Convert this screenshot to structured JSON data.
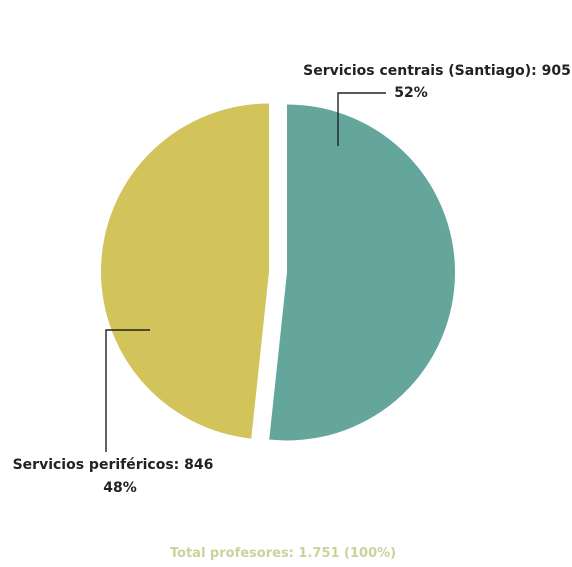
{
  "chart_data": {
    "type": "pie",
    "slices": [
      {
        "name": "Servicios centrais (Santiago)",
        "value": 905,
        "percent": 52,
        "label": "Servicios centrais (Santiago): 905",
        "percent_label": "52%",
        "color": "#64a59c"
      },
      {
        "name": "Servicios periféricos",
        "value": 846,
        "percent": 48,
        "label": "Servicios periféricos: 846",
        "percent_label": "48%",
        "color": "#d2c35a"
      }
    ],
    "total_label": "Total profesores: 1.751 (100%)",
    "exploded": true
  }
}
